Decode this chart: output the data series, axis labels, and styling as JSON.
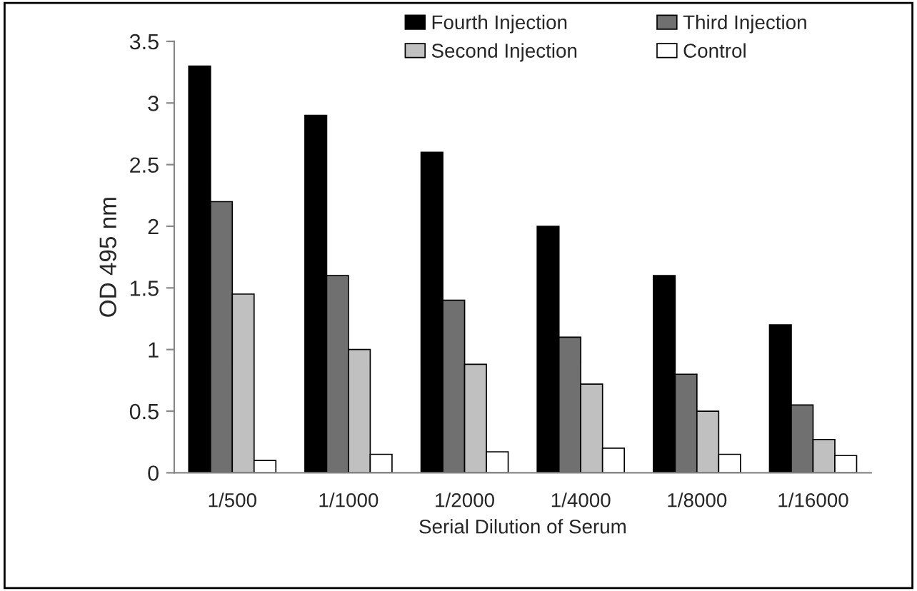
{
  "chart_data": {
    "type": "bar",
    "xlabel": "Serial Dilution of Serum",
    "ylabel": "OD 495 nm",
    "categories": [
      "1/500",
      "1/1000",
      "1/2000",
      "1/4000",
      "1/8000",
      "1/16000"
    ],
    "series": [
      {
        "name": "Fourth Injection",
        "color": "#000000",
        "values": [
          3.3,
          2.9,
          2.6,
          2.0,
          1.6,
          1.2
        ]
      },
      {
        "name": "Third Injection",
        "color": "#707070",
        "values": [
          2.2,
          1.6,
          1.4,
          1.1,
          0.8,
          0.55
        ]
      },
      {
        "name": "Second Injection",
        "color": "#c0c0c0",
        "values": [
          1.45,
          1.0,
          0.88,
          0.72,
          0.5,
          0.27
        ]
      },
      {
        "name": "Control",
        "color": "#ffffff",
        "values": [
          0.1,
          0.15,
          0.17,
          0.2,
          0.15,
          0.14
        ]
      }
    ],
    "ylim": [
      0,
      3.5
    ],
    "yticks": [
      0,
      0.5,
      1,
      1.5,
      2,
      2.5,
      3,
      3.5
    ],
    "grid": false,
    "legend": "top"
  }
}
